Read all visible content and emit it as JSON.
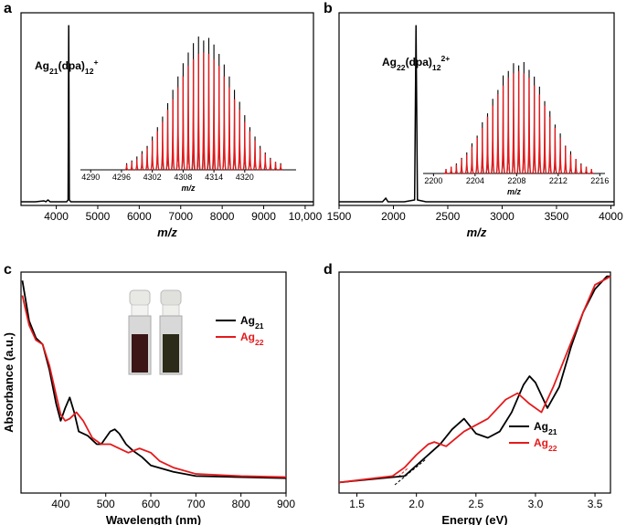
{
  "chart_data": [
    {
      "type": "line",
      "panel": "a",
      "annotation": [
        {
          "text": "Ag"
        },
        {
          "text": "21",
          "sub": true
        },
        {
          "text": "(dpa)"
        },
        {
          "text": "12",
          "sub": true
        },
        {
          "text": "+",
          "sup": true
        }
      ],
      "x": [
        3150,
        3500,
        3700,
        3750,
        3800,
        3850,
        4000,
        4250,
        4285,
        4300,
        4315,
        4350,
        5000,
        7000,
        10200
      ],
      "values": [
        0.02,
        0.02,
        0.025,
        0.02,
        0.03,
        0.02,
        0.02,
        0.02,
        0.03,
        0.98,
        0.03,
        0.02,
        0.02,
        0.02,
        0.02
      ],
      "color": "#000000",
      "xlabel": "m/z",
      "xlim": [
        3150,
        10200
      ],
      "ylim": [
        0,
        1.05
      ],
      "xticks": [
        4000,
        5000,
        6000,
        7000,
        8000,
        9000,
        {
          "value": 10000,
          "label": "10,000"
        }
      ],
      "inset": {
        "type": "stem",
        "xlabel": "m/z",
        "xlim": [
          4288,
          4330
        ],
        "ylim": [
          0,
          1
        ],
        "xticks": [
          4290,
          4296,
          4302,
          4308,
          4314,
          4320
        ],
        "x": [
          4297,
          4298,
          4299,
          4300,
          4301,
          4302,
          4303,
          4304,
          4305,
          4306,
          4307,
          4308,
          4309,
          4310,
          4311,
          4312,
          4313,
          4314,
          4315,
          4316,
          4317,
          4318,
          4319,
          4320,
          4321,
          4322,
          4323,
          4324,
          4325,
          4326,
          4327
        ],
        "series": [
          {
            "color": "#000000",
            "values": [
              0.05,
              0.07,
              0.1,
              0.14,
              0.18,
              0.25,
              0.32,
              0.4,
              0.5,
              0.6,
              0.7,
              0.8,
              0.88,
              0.95,
              1.0,
              0.97,
              0.99,
              0.94,
              0.87,
              0.79,
              0.7,
              0.6,
              0.51,
              0.41,
              0.32,
              0.25,
              0.18,
              0.13,
              0.09,
              0.06,
              0.05
            ]
          },
          {
            "color": "#e41a1c",
            "values": [
              0.04,
              0.06,
              0.08,
              0.12,
              0.16,
              0.22,
              0.29,
              0.36,
              0.45,
              0.53,
              0.62,
              0.7,
              0.78,
              0.83,
              0.87,
              0.88,
              0.87,
              0.83,
              0.78,
              0.7,
              0.62,
              0.53,
              0.45,
              0.36,
              0.29,
              0.22,
              0.16,
              0.12,
              0.08,
              0.06,
              0.04
            ]
          }
        ]
      }
    },
    {
      "type": "line",
      "panel": "b",
      "annotation": [
        {
          "text": "Ag"
        },
        {
          "text": "22",
          "sub": true
        },
        {
          "text": "(dpa)"
        },
        {
          "text": "12",
          "sub": true
        },
        {
          "text": "2+",
          "sup": true
        }
      ],
      "x": [
        1500,
        1800,
        1900,
        1930,
        1950,
        2100,
        2195,
        2208,
        2221,
        2300,
        3000,
        4030
      ],
      "values": [
        0.02,
        0.02,
        0.02,
        0.04,
        0.02,
        0.02,
        0.03,
        0.98,
        0.03,
        0.02,
        0.02,
        0.02
      ],
      "color": "#000000",
      "xlabel": "m/z",
      "xlim": [
        1500,
        4030
      ],
      "ylim": [
        0,
        1.05
      ],
      "xticks": [
        1500,
        2000,
        2500,
        3000,
        3500,
        4000
      ],
      "inset": {
        "type": "stem",
        "xlabel": "m/z",
        "xlim": [
          2199,
          2216.5
        ],
        "ylim": [
          0,
          1
        ],
        "xticks": [
          2200,
          2204,
          2208,
          2212,
          2216
        ],
        "x": [
          2201.2,
          2201.7,
          2202.2,
          2202.7,
          2203.2,
          2203.7,
          2204.2,
          2204.7,
          2205.2,
          2205.7,
          2206.2,
          2206.7,
          2207.2,
          2207.7,
          2208.2,
          2208.7,
          2209.2,
          2209.7,
          2210.2,
          2210.7,
          2211.2,
          2211.7,
          2212.2,
          2212.7,
          2213.2,
          2213.7,
          2214.2,
          2214.7,
          2215.2
        ],
        "series": [
          {
            "color": "#000000",
            "values": [
              0.04,
              0.06,
              0.09,
              0.14,
              0.19,
              0.27,
              0.34,
              0.46,
              0.54,
              0.67,
              0.75,
              0.88,
              0.92,
              0.99,
              0.97,
              1.0,
              0.93,
              0.87,
              0.78,
              0.65,
              0.56,
              0.44,
              0.36,
              0.25,
              0.2,
              0.13,
              0.09,
              0.06,
              0.04
            ]
          },
          {
            "color": "#e41a1c",
            "values": [
              0.04,
              0.06,
              0.08,
              0.13,
              0.17,
              0.24,
              0.32,
              0.41,
              0.51,
              0.61,
              0.71,
              0.79,
              0.86,
              0.9,
              0.92,
              0.9,
              0.86,
              0.79,
              0.71,
              0.61,
              0.51,
              0.41,
              0.32,
              0.24,
              0.17,
              0.13,
              0.08,
              0.06,
              0.04
            ]
          }
        ]
      }
    },
    {
      "type": "line",
      "panel": "c",
      "xlabel": "Wavelength (nm)",
      "ylabel": "Absorbance (a.u.)",
      "xlim": [
        312,
        900
      ],
      "ylim": [
        0,
        1.04
      ],
      "xticks": [
        400,
        500,
        600,
        700,
        800,
        900
      ],
      "series": [
        {
          "name": [
            {
              "text": "Ag"
            },
            {
              "text": "21",
              "sub": true
            }
          ],
          "color": "#000000",
          "x": [
            315,
            330,
            345,
            360,
            375,
            390,
            400,
            410,
            420,
            430,
            440,
            460,
            480,
            490,
            500,
            510,
            520,
            530,
            545,
            560,
            580,
            600,
            650,
            700,
            800,
            900
          ],
          "values": [
            1.0,
            0.81,
            0.73,
            0.7,
            0.58,
            0.42,
            0.34,
            0.4,
            0.45,
            0.38,
            0.29,
            0.27,
            0.23,
            0.23,
            0.26,
            0.29,
            0.3,
            0.28,
            0.23,
            0.2,
            0.17,
            0.13,
            0.1,
            0.08,
            0.075,
            0.07
          ]
        },
        {
          "name": [
            {
              "text": "Ag"
            },
            {
              "text": "22",
              "sub": true
            }
          ],
          "color": "#e41a1c",
          "x": [
            315,
            330,
            345,
            360,
            375,
            390,
            400,
            410,
            420,
            435,
            450,
            470,
            490,
            510,
            530,
            550,
            575,
            600,
            620,
            650,
            700,
            800,
            900
          ],
          "values": [
            0.93,
            0.79,
            0.72,
            0.7,
            0.6,
            0.46,
            0.37,
            0.34,
            0.35,
            0.38,
            0.34,
            0.26,
            0.23,
            0.23,
            0.21,
            0.19,
            0.21,
            0.19,
            0.15,
            0.12,
            0.09,
            0.08,
            0.075
          ]
        }
      ]
    },
    {
      "type": "line",
      "panel": "d",
      "xlabel": "Energy (eV)",
      "xlim": [
        1.35,
        3.63
      ],
      "ylim": [
        0,
        1.04
      ],
      "xticks": [
        1.5,
        {
          "value": 2,
          "label": "2.0"
        },
        2.5,
        {
          "value": 3,
          "label": "3.0"
        },
        3.5
      ],
      "series": [
        {
          "name": [
            {
              "text": "Ag"
            },
            {
              "text": "21",
              "sub": true
            }
          ],
          "color": "#000000",
          "x": [
            1.35,
            1.9,
            2.0,
            2.2,
            2.3,
            2.4,
            2.5,
            2.6,
            2.7,
            2.8,
            2.9,
            2.95,
            3.0,
            3.1,
            3.2,
            3.3,
            3.4,
            3.5,
            3.6,
            3.63
          ],
          "values": [
            0.05,
            0.08,
            0.13,
            0.23,
            0.3,
            0.35,
            0.28,
            0.26,
            0.29,
            0.38,
            0.51,
            0.55,
            0.52,
            0.4,
            0.5,
            0.69,
            0.85,
            0.96,
            1.02,
            1.02
          ]
        },
        {
          "name": [
            {
              "text": "Ag"
            },
            {
              "text": "22",
              "sub": true
            }
          ],
          "color": "#e41a1c",
          "x": [
            1.35,
            1.8,
            1.9,
            2.0,
            2.1,
            2.15,
            2.25,
            2.4,
            2.6,
            2.75,
            2.85,
            2.95,
            3.05,
            3.15,
            3.3,
            3.4,
            3.5,
            3.6,
            3.63
          ],
          "values": [
            0.05,
            0.08,
            0.12,
            0.18,
            0.23,
            0.24,
            0.22,
            0.29,
            0.35,
            0.44,
            0.47,
            0.42,
            0.38,
            0.5,
            0.71,
            0.85,
            0.98,
            1.01,
            1.02
          ]
        }
      ]
    }
  ]
}
